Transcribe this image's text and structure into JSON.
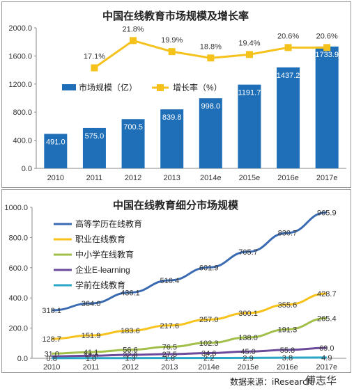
{
  "chart_data": [
    {
      "type": "bar+line",
      "title": "中国在线教育市场规模及增长率",
      "categories": [
        "2010",
        "2011",
        "2012",
        "2013",
        "2014e",
        "2015e",
        "2016e",
        "2017e"
      ],
      "ylim": [
        0,
        2000
      ],
      "yticks": [
        "0.0",
        "400.0",
        "800.0",
        "1200.0",
        "1600.0",
        "2000.0"
      ],
      "bar_series": {
        "name": "市场规模（亿）",
        "color": "#1f6fb8",
        "values": [
          491.0,
          575.0,
          700.5,
          839.8,
          998.0,
          1191.7,
          1437.2,
          1733.9
        ],
        "labels": [
          "491.0",
          "575.0",
          "700.5",
          "839.8",
          "998.0",
          "1191.7",
          "1437.2",
          "1733.9"
        ]
      },
      "line_series": {
        "name": "增长率（%）",
        "color": "#f5c21b",
        "values": [
          null,
          17.1,
          21.8,
          19.9,
          18.8,
          19.4,
          20.6,
          20.6
        ],
        "labels": [
          "",
          "17.1%",
          "21.8%",
          "19.9%",
          "18.8%",
          "19.4%",
          "20.6%",
          "20.6%"
        ]
      },
      "legend_position": "middle-left"
    },
    {
      "type": "line",
      "title": "中国在线教育细分市场规模",
      "categories": [
        "2010",
        "2011",
        "2012",
        "2013",
        "2014e",
        "2015e",
        "2016e",
        "2017e"
      ],
      "ylim": [
        0,
        1000
      ],
      "yticks": [
        "0.0",
        "200.0",
        "400.0",
        "600.0",
        "800.0",
        "1000.0"
      ],
      "series": [
        {
          "name": "高等学历在线教育",
          "color": "#3a6bb2",
          "values": [
            318.1,
            364.0,
            436.1,
            516.4,
            601.9,
            705.7,
            830.7,
            965.9
          ],
          "labels": [
            "318.1",
            "364.0",
            "436.1",
            "516.4",
            "601.9",
            "705.7",
            "830.7",
            "965.9"
          ]
        },
        {
          "name": "职业在线教育",
          "color": "#f7c21a",
          "values": [
            128.7,
            151.9,
            183.6,
            217.6,
            257.0,
            300.1,
            355.6,
            428.7
          ],
          "labels": [
            "128.7",
            "151.9",
            "183.6",
            "217.6",
            "257.0",
            "300.1",
            "355.6",
            "428.7"
          ]
        },
        {
          "name": "中小学在线教育",
          "color": "#a2bf4a",
          "values": [
            31.0,
            41.1,
            56.6,
            76.5,
            102.3,
            138.0,
            191.3,
            265.4
          ],
          "labels": [
            "31.0",
            "41.1",
            "56.6",
            "76.5",
            "102.3",
            "138.0",
            "191.3",
            "265.4"
          ]
        },
        {
          "name": "企业E-learning",
          "color": "#6b4a9b",
          "values": [
            12.4,
            17.0,
            22.9,
            27.5,
            34.6,
            45.0,
            55.8,
            69.0
          ],
          "labels": [
            "",
            "17.0",
            "22.9",
            "27.5",
            "34.6",
            "45.0",
            "55.8",
            "69.0"
          ]
        },
        {
          "name": "学前在线教育",
          "color": "#2aa6c7",
          "values": [
            0.8,
            1.0,
            1.3,
            1.8,
            2.2,
            2.9,
            3.8,
            4.9
          ],
          "labels": [
            "0.8",
            "1.0",
            "1.3",
            "1.8",
            "2.2",
            "2.9",
            "3.8",
            "4.9"
          ]
        }
      ],
      "legend_position": "top-left"
    }
  ],
  "footer": {
    "source": "数据来源：iResearch",
    "watermark": "傅志华"
  }
}
